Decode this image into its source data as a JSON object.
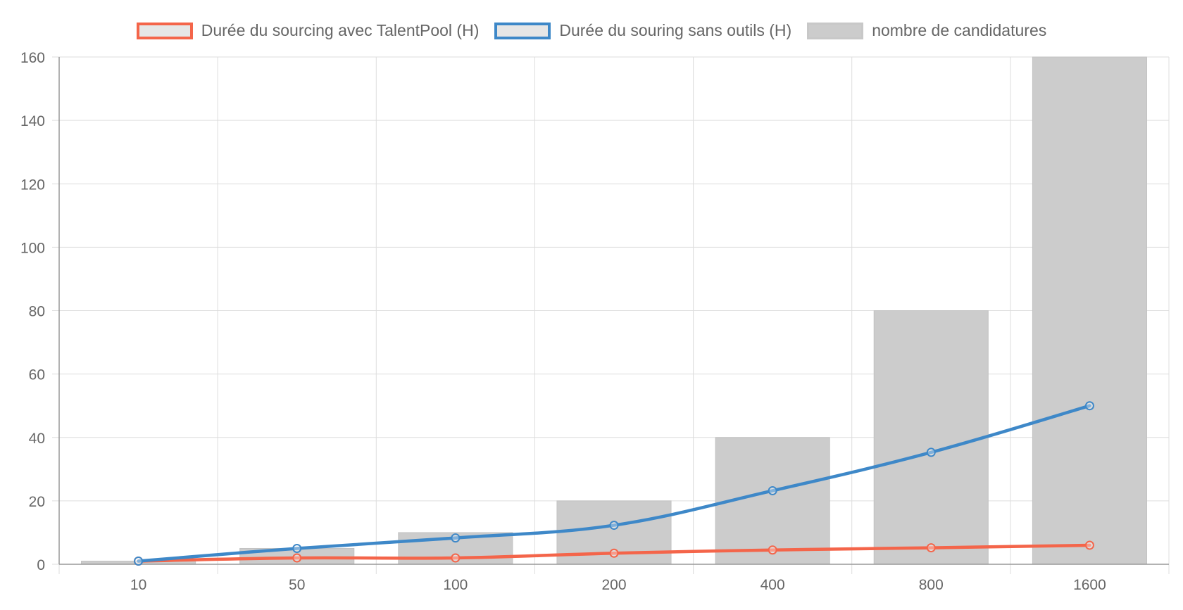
{
  "chart_data": {
    "type": "bar",
    "categories": [
      "10",
      "50",
      "100",
      "200",
      "400",
      "800",
      "1600"
    ],
    "ylim": [
      0,
      160
    ],
    "yticks": [
      0,
      20,
      40,
      60,
      80,
      100,
      120,
      140,
      160
    ],
    "grid": true,
    "legend_position": "top-center",
    "bars": {
      "name": "nombre de candidatures",
      "color": "#cccccc",
      "values": [
        1,
        5,
        10,
        20,
        40,
        80,
        160
      ]
    },
    "lines": [
      {
        "name": "Durée du sourcing avec TalentPool (H)",
        "color": "#f4654a",
        "values": [
          1,
          2,
          2,
          3.5,
          4.5,
          5.2,
          6
        ]
      },
      {
        "name": "Durée du souring sans outils (H)",
        "color": "#3e88c8",
        "values": [
          1,
          5,
          8.3,
          12.3,
          23.2,
          35.3,
          50
        ]
      }
    ]
  }
}
